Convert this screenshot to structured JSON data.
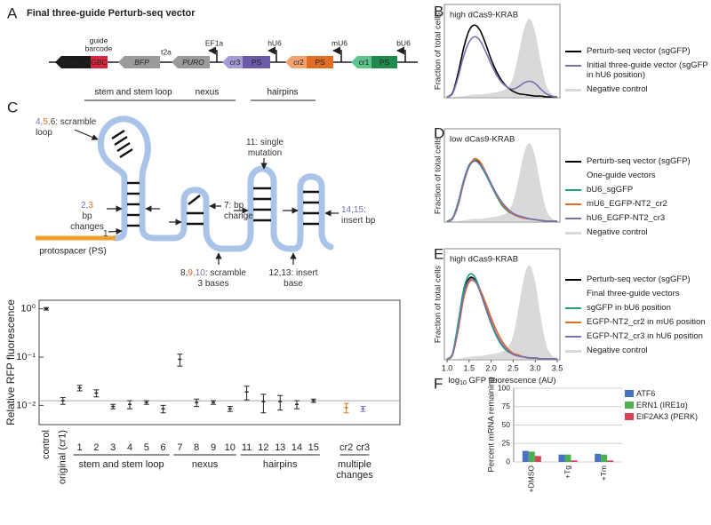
{
  "panel_labels": [
    "A",
    "B",
    "C",
    "D",
    "E",
    "F"
  ],
  "vector": {
    "title": "Final three-guide Perturb-seq vector",
    "elements": [
      {
        "label": "BGH pA",
        "color": "#1a1a1a",
        "text_color": "#ffffff",
        "italic": false
      },
      {
        "label": "GBC",
        "color": "#d7263d",
        "text_color": "#ffffff",
        "italic": false
      },
      {
        "label": "BFP",
        "color": "#9a9a9a",
        "text_color": "#ffffff",
        "italic": true
      },
      {
        "label": "PURO",
        "color": "#9a9a9a",
        "text_color": "#ffffff",
        "italic": true
      },
      {
        "label": "cr3",
        "color": "#a79bd6",
        "text_color": "#222222",
        "italic": false
      },
      {
        "label": "PS",
        "color": "#6c5aa8",
        "text_color": "#ffffff",
        "italic": false
      },
      {
        "label": "cr2",
        "color": "#f2a26e",
        "text_color": "#222222",
        "italic": false
      },
      {
        "label": "PS",
        "color": "#e06d24",
        "text_color": "#ffffff",
        "italic": false
      },
      {
        "label": "cr1",
        "color": "#5cc48c",
        "text_color": "#222222",
        "italic": false
      },
      {
        "label": "PS",
        "color": "#1f8a4c",
        "text_color": "#ffffff",
        "italic": false
      }
    ],
    "labels": [
      {
        "lines": [
          "guide",
          "barcode"
        ]
      },
      {
        "lines": [
          "t2a"
        ]
      },
      {
        "lines": [
          "EF1a"
        ]
      },
      {
        "lines": [
          "hU6"
        ]
      },
      {
        "lines": [
          "mU6"
        ]
      },
      {
        "lines": [
          "bU6"
        ]
      }
    ]
  },
  "guide_diagram": {
    "headers": [
      "stem and stem loop",
      "nexus",
      "hairpins"
    ],
    "protospacer": "protospacer (PS)",
    "annotations": [
      {
        "lines": [
          [
            {
              "text": "4,",
              "color": "#6f74c0"
            },
            {
              "text": "5,",
              "color": "#e07020"
            },
            {
              "text": "6: scramble",
              "color": "#333333"
            }
          ],
          [
            {
              "text": "loop",
              "color": "#333333"
            }
          ]
        ]
      },
      {
        "lines": [
          [
            {
              "text": "2,",
              "color": "#7a6fb5"
            },
            {
              "text": "3",
              "color": "#e07020"
            }
          ],
          [
            {
              "text": "bp",
              "color": "#333333"
            }
          ],
          [
            {
              "text": "changes",
              "color": "#333333"
            }
          ]
        ]
      },
      {
        "lines": [
          [
            {
              "text": "1",
              "color": "#333333"
            }
          ]
        ]
      },
      {
        "lines": [
          [
            {
              "text": "7: bp",
              "color": "#333333"
            }
          ],
          [
            {
              "text": "change",
              "color": "#333333"
            }
          ]
        ]
      },
      {
        "lines": [
          [
            {
              "text": "11: single",
              "color": "#333333"
            }
          ],
          [
            {
              "text": "mutation",
              "color": "#333333"
            }
          ]
        ]
      },
      {
        "lines": [
          [
            {
              "text": "14,",
              "color": "#6f74c0"
            },
            {
              "text": "15",
              "color": "#7a6fb5"
            },
            {
              "text": ":",
              "color": "#333333"
            }
          ],
          [
            {
              "text": "insert bp",
              "color": "#333333"
            }
          ]
        ]
      },
      {
        "lines": [
          [
            {
              "text": "8,",
              "color": "#333333"
            },
            {
              "text": "9,",
              "color": "#e07020"
            },
            {
              "text": "10",
              "color": "#7a6fb5"
            },
            {
              "text": ": scramble",
              "color": "#333333"
            }
          ],
          [
            {
              "text": "3 bases",
              "color": "#333333"
            }
          ]
        ]
      },
      {
        "lines": [
          [
            {
              "text": "12,13: insert",
              "color": "#333333"
            }
          ],
          [
            {
              "text": "base",
              "color": "#333333"
            }
          ]
        ]
      }
    ]
  },
  "chart_data": [
    {
      "type": "errorbar",
      "ylabel": "Relative RFP fluorescence",
      "categories": [
        "control",
        "original (cr1)",
        "1",
        "2",
        "3",
        "4",
        "5",
        "6",
        "7",
        "8",
        "9",
        "10",
        "11",
        "12",
        "13",
        "14",
        "15",
        "cr2",
        "cr3"
      ],
      "values": [
        1,
        0.0125,
        0.023,
        0.018,
        0.0095,
        0.0105,
        0.0115,
        0.0085,
        0.09,
        0.0115,
        0.0115,
        0.0085,
        0.019,
        0.012,
        0.012,
        0.0105,
        0.0125,
        0.009,
        0.0085
      ],
      "errors": [
        0.06,
        0.002,
        0.003,
        0.003,
        0.001,
        0.002,
        0.001,
        0.0015,
        0.025,
        0.002,
        0.001,
        0.001,
        0.006,
        0.005,
        0.004,
        0.002,
        0.001,
        0.002,
        0.001
      ],
      "point_colors": [
        "#222222",
        "#222222",
        "#222222",
        "#222222",
        "#222222",
        "#222222",
        "#222222",
        "#222222",
        "#222222",
        "#222222",
        "#222222",
        "#222222",
        "#222222",
        "#222222",
        "#222222",
        "#222222",
        "#222222",
        "#e07020",
        "#7a6fb5"
      ],
      "groups": [
        {
          "lines": [
            "stem and stem loop"
          ]
        },
        {
          "lines": [
            "nexus"
          ]
        },
        {
          "lines": [
            "hairpins"
          ]
        },
        {
          "lines": [
            "multiple",
            "changes"
          ]
        }
      ],
      "log": true,
      "ylim": [
        0.004,
        1.5
      ],
      "yticks": [
        {
          "value": 1,
          "label": "10⁰"
        },
        {
          "value": 0.1,
          "label": "10⁻¹"
        },
        {
          "value": 0.01,
          "label": "10⁻²"
        }
      ]
    },
    {
      "type": "density",
      "title": "high dCas9-KRAB",
      "ylabel": "Fraction of total cells",
      "xlim": [
        1,
        3.5
      ],
      "ylim": [
        0,
        1.15
      ],
      "x": [
        1,
        1.125,
        1.25,
        1.375,
        1.5,
        1.625,
        1.75,
        1.875,
        2,
        2.125,
        2.25,
        2.375,
        2.5,
        2.625,
        2.75,
        2.875,
        3,
        3.125,
        3.25,
        3.375,
        3.5
      ],
      "series": [
        {
          "name": "Perturb-seq vector (sgGFP)",
          "color": "#000000",
          "fill": false,
          "values": [
            0,
            0.05,
            0.3,
            0.62,
            0.85,
            0.92,
            0.85,
            0.68,
            0.48,
            0.32,
            0.2,
            0.12,
            0.07,
            0.04,
            0.03,
            0.02,
            0.01,
            0.01,
            0,
            0,
            0
          ]
        },
        {
          "name": "Initial three-guide vector (sgGFP in hU6 position)",
          "color": "#7a6fb5",
          "fill": false,
          "values": [
            0,
            0.04,
            0.25,
            0.52,
            0.7,
            0.77,
            0.72,
            0.58,
            0.42,
            0.28,
            0.18,
            0.12,
            0.1,
            0.13,
            0.18,
            0.2,
            0.17,
            0.1,
            0.04,
            0.01,
            0
          ]
        },
        {
          "name": "Negative control",
          "color": "#d9d9d9",
          "fill": true,
          "values": [
            0,
            0,
            0,
            0.01,
            0.02,
            0.03,
            0.03,
            0.04,
            0.05,
            0.06,
            0.08,
            0.12,
            0.25,
            0.55,
            0.88,
            1,
            0.82,
            0.45,
            0.15,
            0.04,
            0
          ]
        }
      ]
    },
    {
      "type": "density",
      "title": "low dCas9-KRAB",
      "ylabel": "Fraction of total cells",
      "legend_heading": "One-guide vectors",
      "xlim": [
        1,
        3.5
      ],
      "ylim": [
        0,
        1.15
      ],
      "x": [
        1,
        1.125,
        1.25,
        1.375,
        1.5,
        1.625,
        1.75,
        1.875,
        2,
        2.125,
        2.25,
        2.375,
        2.5,
        2.625,
        2.75,
        2.875,
        3,
        3.125,
        3.25,
        3.375,
        3.5
      ],
      "series": [
        {
          "name": "Perturb-seq vector (sgGFP)",
          "color": "#000000",
          "fill": false,
          "values": [
            0,
            0.04,
            0.22,
            0.5,
            0.7,
            0.78,
            0.74,
            0.62,
            0.48,
            0.34,
            0.22,
            0.14,
            0.09,
            0.06,
            0.04,
            0.03,
            0.02,
            0.01,
            0,
            0,
            0
          ]
        },
        {
          "name": "bU6_sgGFP",
          "color": "#1aa37a",
          "fill": false,
          "values": [
            0,
            0.04,
            0.24,
            0.52,
            0.72,
            0.78,
            0.72,
            0.6,
            0.46,
            0.32,
            0.2,
            0.13,
            0.09,
            0.06,
            0.04,
            0.03,
            0.02,
            0.01,
            0,
            0,
            0
          ]
        },
        {
          "name": "mU6_EGFP-NT2_cr2",
          "color": "#e06d24",
          "fill": false,
          "values": [
            0,
            0.03,
            0.2,
            0.48,
            0.7,
            0.8,
            0.76,
            0.63,
            0.48,
            0.34,
            0.22,
            0.14,
            0.09,
            0.06,
            0.04,
            0.03,
            0.02,
            0.01,
            0,
            0,
            0
          ]
        },
        {
          "name": "hU6_EGFP-NT2_cr3",
          "color": "#7a6fb5",
          "fill": false,
          "values": [
            0,
            0.03,
            0.22,
            0.5,
            0.7,
            0.77,
            0.73,
            0.62,
            0.48,
            0.35,
            0.24,
            0.16,
            0.1,
            0.07,
            0.05,
            0.03,
            0.02,
            0.01,
            0,
            0,
            0
          ]
        },
        {
          "name": "Negative control",
          "color": "#d9d9d9",
          "fill": true,
          "values": [
            0,
            0,
            0,
            0.01,
            0.02,
            0.03,
            0.03,
            0.04,
            0.05,
            0.06,
            0.08,
            0.12,
            0.25,
            0.55,
            0.88,
            1,
            0.82,
            0.45,
            0.15,
            0.04,
            0
          ]
        }
      ]
    },
    {
      "type": "density",
      "title": "high dCas9-KRAB",
      "ylabel": "Fraction of total cells",
      "legend_heading": "Final three-guide vectors",
      "xlabel": {
        "base": "log",
        "sub": "10",
        "rest": " GFP fluorescence (AU)"
      },
      "xlim": [
        1,
        3.5
      ],
      "ylim": [
        0,
        1.15
      ],
      "xticks": [
        {
          "value": 1,
          "label": "1.0"
        },
        1.5,
        {
          "value": 2,
          "label": "2.0"
        },
        2.5,
        {
          "value": 3,
          "label": "3.0"
        },
        3.5
      ],
      "x": [
        1,
        1.125,
        1.25,
        1.375,
        1.5,
        1.625,
        1.75,
        1.875,
        2,
        2.125,
        2.25,
        2.375,
        2.5,
        2.625,
        2.75,
        2.875,
        3,
        3.125,
        3.25,
        3.375,
        3.5
      ],
      "series": [
        {
          "name": "Perturb-seq vector (sgGFP)",
          "color": "#000000",
          "fill": false,
          "values": [
            0,
            0.05,
            0.35,
            0.7,
            0.86,
            0.85,
            0.72,
            0.55,
            0.38,
            0.25,
            0.15,
            0.09,
            0.05,
            0.03,
            0.02,
            0.01,
            0.01,
            0,
            0,
            0,
            0
          ]
        },
        {
          "name": "sgGFP in bU6 position",
          "color": "#1aa37a",
          "fill": false,
          "values": [
            0,
            0.06,
            0.38,
            0.74,
            0.9,
            0.88,
            0.74,
            0.56,
            0.38,
            0.24,
            0.14,
            0.08,
            0.05,
            0.03,
            0.02,
            0.01,
            0.01,
            0,
            0,
            0,
            0
          ]
        },
        {
          "name": "EGFP-NT2_cr2 in mU6 position",
          "color": "#e06d24",
          "fill": false,
          "values": [
            0,
            0.04,
            0.3,
            0.64,
            0.82,
            0.83,
            0.74,
            0.6,
            0.44,
            0.3,
            0.19,
            0.11,
            0.06,
            0.04,
            0.02,
            0.01,
            0.01,
            0,
            0,
            0,
            0
          ]
        },
        {
          "name": "EGFP-NT2_cr3 in hU6 position",
          "color": "#7a6fb5",
          "fill": false,
          "values": [
            0,
            0.05,
            0.33,
            0.68,
            0.84,
            0.84,
            0.72,
            0.56,
            0.4,
            0.26,
            0.16,
            0.09,
            0.05,
            0.03,
            0.02,
            0.01,
            0.01,
            0,
            0,
            0,
            0
          ]
        },
        {
          "name": "Negative control",
          "color": "#d9d9d9",
          "fill": true,
          "values": [
            0,
            0,
            0,
            0.01,
            0.02,
            0.03,
            0.03,
            0.04,
            0.05,
            0.06,
            0.08,
            0.12,
            0.25,
            0.55,
            0.88,
            1,
            0.82,
            0.45,
            0.15,
            0.04,
            0
          ]
        }
      ]
    },
    {
      "type": "bar",
      "ylabel": "Percent mRNA remaining",
      "categories": [
        "+DMSO",
        "+Tg",
        "+Tm"
      ],
      "series": [
        {
          "name": "ATF6",
          "color": "#4a72c4",
          "values": [
            15,
            10,
            11
          ]
        },
        {
          "name": "ERN1 (IRE1α)",
          "color": "#4caf50",
          "values": [
            14,
            10,
            10
          ]
        },
        {
          "name": "EIF2AK3 (PERK)",
          "color": "#d6454f",
          "values": [
            8,
            2,
            2
          ]
        }
      ],
      "ylim": [
        0,
        100
      ],
      "yticks": [
        0,
        25,
        50,
        75,
        100
      ],
      "grid": true
    }
  ]
}
